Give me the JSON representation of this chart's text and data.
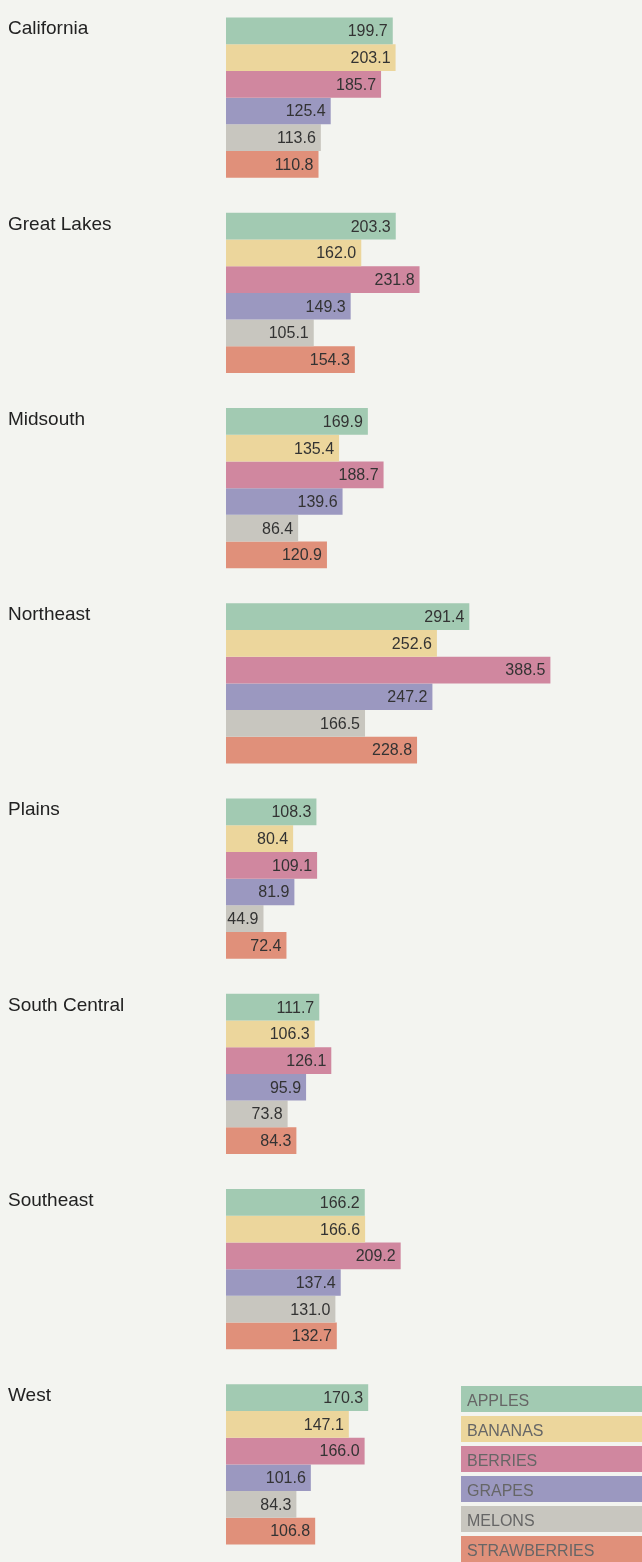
{
  "chart_data": {
    "type": "bar",
    "orientation": "horizontal",
    "legend": "bottom right",
    "categories": [
      "California",
      "Great Lakes",
      "Midsouth",
      "Northeast",
      "Plains",
      "South Central",
      "Southeast",
      "West"
    ],
    "series": [
      {
        "name": "APPLES",
        "color": "#a2cab2",
        "values": [
          199.7,
          203.3,
          169.9,
          291.4,
          108.3,
          111.7,
          166.2,
          170.3
        ],
        "value_labels": [
          "199.7",
          "203.3",
          "169.9",
          "291.4",
          "108.3",
          "111.7",
          "166.2",
          "170.3"
        ]
      },
      {
        "name": "BANANAS",
        "color": "#ecd69c",
        "values": [
          203.1,
          162.0,
          135.4,
          252.6,
          80.4,
          106.3,
          166.6,
          147.1
        ],
        "value_labels": [
          "203.1",
          "162.0",
          "135.4",
          "252.6",
          "80.4",
          "106.3",
          "166.6",
          "147.1"
        ]
      },
      {
        "name": "BERRIES",
        "color": "#d0879f",
        "values": [
          185.7,
          231.8,
          188.7,
          388.5,
          109.1,
          126.1,
          209.2,
          166.0
        ],
        "value_labels": [
          "185.7",
          "231.8",
          "188.7",
          "388.5",
          "109.1",
          "126.1",
          "209.2",
          "166.0"
        ]
      },
      {
        "name": "GRAPES",
        "color": "#9b98c0",
        "values": [
          125.4,
          149.3,
          139.6,
          247.2,
          81.9,
          95.9,
          137.4,
          101.6
        ],
        "value_labels": [
          "125.4",
          "149.3",
          "139.6",
          "247.2",
          "81.9",
          "95.9",
          "137.4",
          "101.6"
        ]
      },
      {
        "name": "MELONS",
        "color": "#c8c6bf",
        "values": [
          113.6,
          105.1,
          86.4,
          166.5,
          44.9,
          73.8,
          131.0,
          84.3
        ],
        "value_labels": [
          "113.6",
          "105.1",
          "86.4",
          "166.5",
          "44.9",
          "73.8",
          "131.0",
          "84.3"
        ]
      },
      {
        "name": "STRAWBERRIES",
        "color": "#e0907a",
        "values": [
          110.8,
          154.3,
          120.9,
          228.8,
          72.4,
          84.3,
          132.7,
          106.8
        ],
        "value_labels": [
          "110.8",
          "154.3",
          "120.9",
          "228.8",
          "72.4",
          "84.3",
          "132.7",
          "106.8"
        ]
      }
    ]
  }
}
